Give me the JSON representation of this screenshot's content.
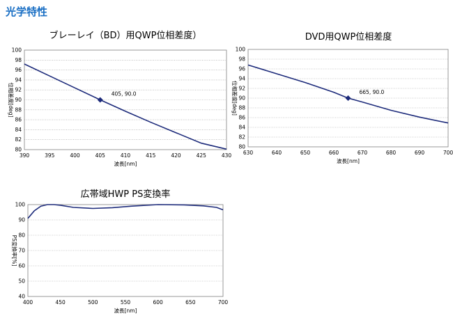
{
  "page": {
    "heading": "光学特性"
  },
  "chart_data": [
    {
      "type": "line",
      "title": "ブレーレイ（BD）用QWP位相差度）",
      "xlabel": "波長[nm]",
      "ylabel": "位相差度[deg]",
      "xlim": [
        390,
        430
      ],
      "ylim": [
        80,
        100
      ],
      "xticks": [
        390,
        395,
        400,
        405,
        410,
        415,
        420,
        425,
        430
      ],
      "yticks": [
        80,
        82,
        84,
        86,
        88,
        90,
        92,
        94,
        96,
        98,
        100
      ],
      "grid": "horizontal-dotted",
      "line_color": "#1c2a7a",
      "series": [
        {
          "x": [
            390,
            395,
            400,
            405,
            410,
            415,
            420,
            425,
            430
          ],
          "y": [
            97.2,
            94.8,
            92.4,
            90.0,
            87.7,
            85.5,
            83.4,
            81.3,
            80.1
          ]
        }
      ],
      "marker": {
        "x": 405,
        "y": 90.0,
        "label": "405, 90.0"
      }
    },
    {
      "type": "line",
      "title": "DVD用QWP位相差度",
      "xlabel": "波長[nm]",
      "ylabel": "位相差度[deg]",
      "xlim": [
        630,
        700
      ],
      "ylim": [
        80,
        100
      ],
      "xticks": [
        630,
        640,
        650,
        660,
        670,
        680,
        690,
        700
      ],
      "yticks": [
        80,
        82,
        84,
        86,
        88,
        90,
        92,
        94,
        96,
        98,
        100
      ],
      "grid": "horizontal-dotted",
      "line_color": "#1c2a7a",
      "series": [
        {
          "x": [
            630,
            640,
            650,
            660,
            665,
            670,
            680,
            690,
            700
          ],
          "y": [
            96.8,
            95.0,
            93.2,
            91.2,
            90.0,
            89.2,
            87.5,
            86.1,
            84.9
          ]
        }
      ],
      "marker": {
        "x": 665,
        "y": 90.0,
        "label": "665, 90.0"
      }
    },
    {
      "type": "line",
      "title": "広帯域HWP PS変換率",
      "xlabel": "波長[nm]",
      "ylabel": "PS変換率[%]",
      "xlim": [
        400,
        700
      ],
      "ylim": [
        40,
        100
      ],
      "xticks": [
        400,
        450,
        500,
        550,
        600,
        650,
        700
      ],
      "yticks": [
        40,
        50,
        60,
        70,
        80,
        90,
        100
      ],
      "grid": "horizontal-dotted",
      "line_color": "#1c2a7a",
      "series": [
        {
          "x": [
            400,
            410,
            420,
            430,
            440,
            450,
            470,
            500,
            530,
            560,
            600,
            640,
            670,
            690,
            700
          ],
          "y": [
            91.0,
            96.0,
            99.0,
            100.0,
            100.0,
            99.6,
            98.2,
            97.5,
            98.0,
            99.0,
            100.0,
            99.8,
            99.2,
            98.2,
            96.6
          ]
        }
      ]
    }
  ]
}
